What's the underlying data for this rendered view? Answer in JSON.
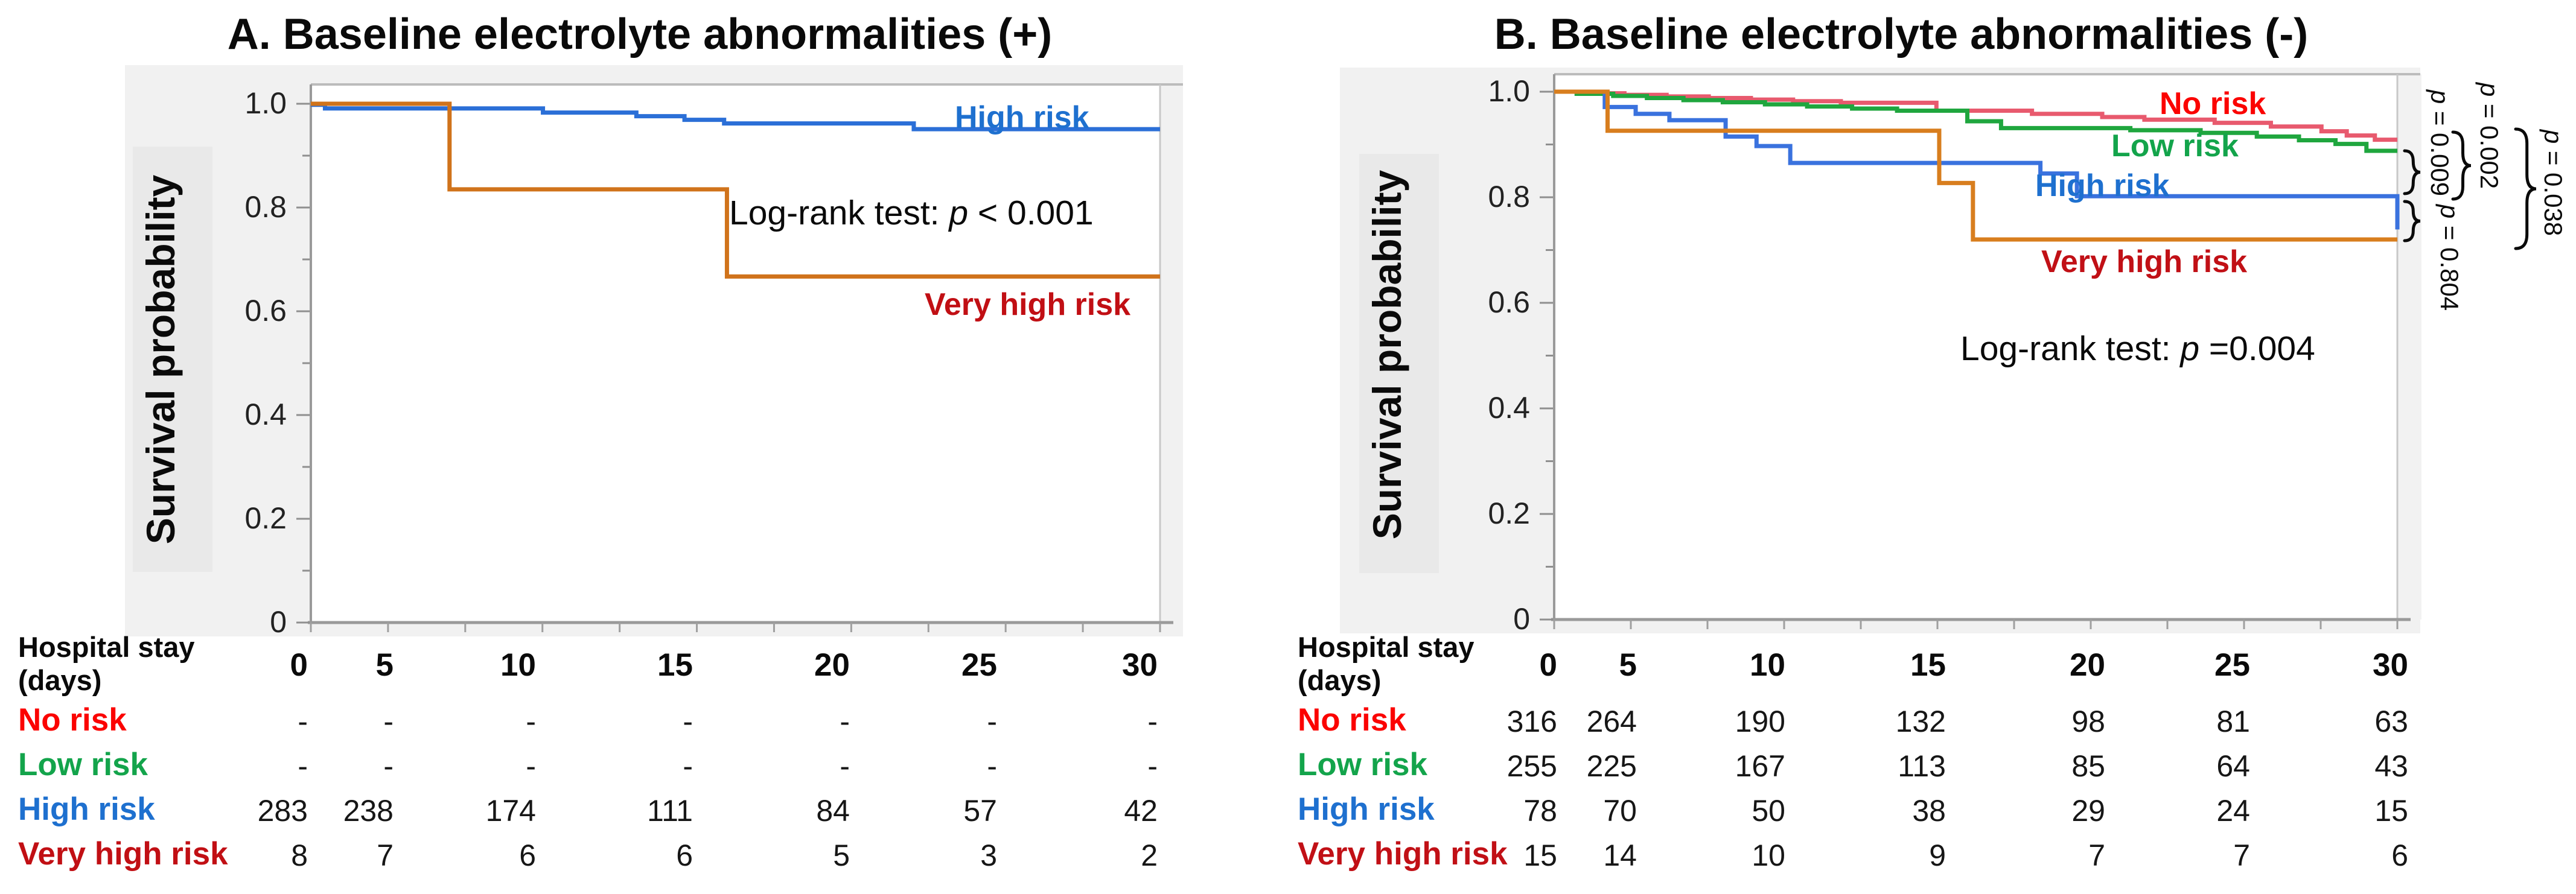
{
  "figure_type": "kaplan-meier-survival-figure",
  "colors": {
    "panel_bg": "#f1f1f1",
    "ylabel_strip": "#e9e9e9",
    "axis_gray": "#9a9a9a",
    "border_gray": "#b8b8b8",
    "km_blue": "#2b6fd7",
    "km_orange": "#d0731b",
    "km_red": "#e85a6e",
    "km_green": "#1fa63e",
    "label_bright_red": "#fb0301",
    "label_green": "#13a44b",
    "label_blue": "#1e70cf",
    "label_dark_red": "#c10f14"
  },
  "chart_data": [
    {
      "type": "line",
      "subtype": "kaplan-meier-step",
      "panel": "A",
      "title": "A. Baseline electrolyte abnormalities (+)",
      "ylabel": "Survival probability",
      "xlabel": "Hospital stay (days)",
      "xlim": [
        0,
        30
      ],
      "ylim": [
        0,
        1.0
      ],
      "xticks": [
        0,
        5,
        10,
        15,
        20,
        25,
        30
      ],
      "ytick_labels": [
        "1.0",
        "0.8",
        "0.6",
        "0.4",
        "0.2",
        "0"
      ],
      "grid": false,
      "legend_position": "labels-on-plot",
      "annotation": {
        "pre": "Log-rank test: ",
        "p": "p",
        "post": " < 0.001"
      },
      "series": [
        {
          "name": "High risk",
          "color": "#2b6fd7",
          "label_color": "#1e70cf",
          "steps": [
            [
              0,
              0.998
            ],
            [
              0.5,
              0.991
            ],
            [
              8.2,
              0.983
            ],
            [
              11.5,
              0.976
            ],
            [
              13.2,
              0.969
            ],
            [
              14.6,
              0.962
            ],
            [
              21.3,
              0.951
            ],
            [
              30,
              0.951
            ]
          ]
        },
        {
          "name": "Very high risk",
          "color": "#d0731b",
          "label_color": "#c10f14",
          "steps": [
            [
              0,
              1.0
            ],
            [
              4.9,
              0.835
            ],
            [
              14.7,
              0.667
            ],
            [
              30,
              0.667
            ]
          ]
        }
      ],
      "risk_table": {
        "header": [
          "Hospital stay",
          "(days)"
        ],
        "times": [
          "0",
          "5",
          "10",
          "15",
          "20",
          "25",
          "30"
        ],
        "rows": [
          {
            "label": "No risk",
            "color": "#fb0301",
            "values": [
              "-",
              "-",
              "-",
              "-",
              "-",
              "-",
              "-"
            ]
          },
          {
            "label": "Low risk",
            "color": "#13a44b",
            "values": [
              "-",
              "-",
              "-",
              "-",
              "-",
              "-",
              "-"
            ]
          },
          {
            "label": "High risk",
            "color": "#1e70cf",
            "values": [
              "283",
              "238",
              "174",
              "111",
              "84",
              "57",
              "42"
            ]
          },
          {
            "label": "Very high risk",
            "color": "#c10f14",
            "values": [
              "8",
              "7",
              "6",
              "6",
              "5",
              "3",
              "2"
            ]
          }
        ]
      }
    },
    {
      "type": "line",
      "subtype": "kaplan-meier-step",
      "panel": "B",
      "title": "B. Baseline electrolyte abnormalities (-)",
      "ylabel": "Survival probability",
      "xlabel": "Hospital stay (days)",
      "xlim": [
        0,
        30
      ],
      "ylim": [
        0,
        1.0
      ],
      "xticks": [
        0,
        5,
        10,
        15,
        20,
        25,
        30
      ],
      "ytick_labels": [
        "1.0",
        "0.8",
        "0.6",
        "0.4",
        "0.2",
        "0"
      ],
      "grid": false,
      "legend_position": "labels-on-plot",
      "annotation": {
        "pre": "Log-rank test: ",
        "p": "p",
        "post": " =0.004"
      },
      "series": [
        {
          "name": "No risk",
          "color": "#e85a6e",
          "label_color": "#fb0301",
          "steps": [
            [
              0,
              1.0
            ],
            [
              1.2,
              0.997
            ],
            [
              2.5,
              0.994
            ],
            [
              4,
              0.991
            ],
            [
              5.5,
              0.988
            ],
            [
              7,
              0.985
            ],
            [
              8.5,
              0.982
            ],
            [
              10.2,
              0.979
            ],
            [
              13.6,
              0.964
            ],
            [
              17,
              0.958
            ],
            [
              19.5,
              0.952
            ],
            [
              21,
              0.947
            ],
            [
              23.5,
              0.941
            ],
            [
              25.5,
              0.934
            ],
            [
              27.3,
              0.925
            ],
            [
              28.2,
              0.917
            ],
            [
              29.2,
              0.909
            ],
            [
              30,
              0.909
            ]
          ]
        },
        {
          "name": "Low risk",
          "color": "#1fa63e",
          "label_color": "#13a44b",
          "steps": [
            [
              0,
              1.0
            ],
            [
              0.8,
              0.996
            ],
            [
              2.1,
              0.992
            ],
            [
              3.3,
              0.988
            ],
            [
              4.6,
              0.984
            ],
            [
              6,
              0.98
            ],
            [
              7.5,
              0.976
            ],
            [
              9,
              0.972
            ],
            [
              10.6,
              0.968
            ],
            [
              12.2,
              0.964
            ],
            [
              14.7,
              0.944
            ],
            [
              15.9,
              0.931
            ],
            [
              20.5,
              0.927
            ],
            [
              23,
              0.922
            ],
            [
              25,
              0.915
            ],
            [
              26.5,
              0.908
            ],
            [
              27.8,
              0.901
            ],
            [
              28.9,
              0.888
            ],
            [
              30,
              0.888
            ]
          ]
        },
        {
          "name": "High risk",
          "color": "#3a72de",
          "label_color": "#1e70cf",
          "steps": [
            [
              0,
              1.0
            ],
            [
              1.8,
              0.971
            ],
            [
              2.9,
              0.958
            ],
            [
              4.1,
              0.946
            ],
            [
              6.1,
              0.915
            ],
            [
              7.2,
              0.897
            ],
            [
              8.4,
              0.865
            ],
            [
              17.3,
              0.845
            ],
            [
              18.6,
              0.802
            ],
            [
              30,
              0.739
            ]
          ]
        },
        {
          "name": "Very high risk",
          "color": "#d87e1e",
          "label_color": "#c11016",
          "steps": [
            [
              0,
              1.0
            ],
            [
              1.9,
              0.926
            ],
            [
              13.7,
              0.827
            ],
            [
              14.9,
              0.72
            ],
            [
              30,
              0.72
            ]
          ]
        }
      ],
      "pairwise_p": [
        {
          "p": "p",
          "rest": " = 0.009"
        },
        {
          "p": "p",
          "rest": " = 0.002"
        },
        {
          "p": "p",
          "rest": " = 0.038"
        },
        {
          "p": "p",
          "rest": " = 0.804"
        }
      ],
      "risk_table": {
        "header": [
          "Hospital stay",
          "(days)"
        ],
        "times": [
          "0",
          "5",
          "10",
          "15",
          "20",
          "25",
          "30"
        ],
        "rows": [
          {
            "label": "No risk",
            "color": "#fb0301",
            "values": [
              "316",
              "264",
              "190",
              "132",
              "98",
              "81",
              "63"
            ]
          },
          {
            "label": "Low risk",
            "color": "#13a44b",
            "values": [
              "255",
              "225",
              "167",
              "113",
              "85",
              "64",
              "43"
            ]
          },
          {
            "label": "High risk",
            "color": "#1e70cf",
            "values": [
              "78",
              "70",
              "50",
              "38",
              "29",
              "24",
              "15"
            ]
          },
          {
            "label": "Very high risk",
            "color": "#c11016",
            "values": [
              "15",
              "14",
              "10",
              "9",
              "7",
              "7",
              "6"
            ]
          }
        ]
      }
    }
  ]
}
